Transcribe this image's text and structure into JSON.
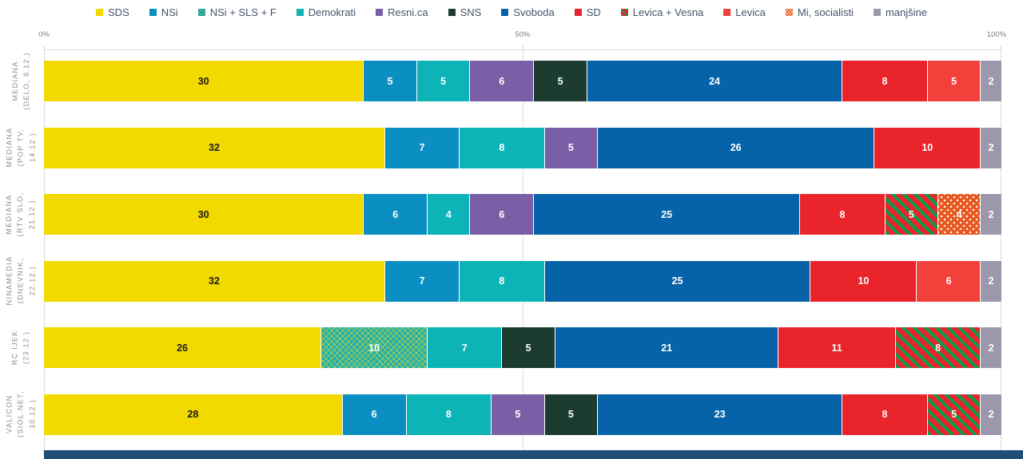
{
  "page": {
    "background": "#FFFFFF",
    "bottom_strip_color": "#1F4E79"
  },
  "chart_data": {
    "type": "bar",
    "variant": "horizontal-stacked-normalized",
    "title": "",
    "grid": "vertical gridlines at 0%, 50%, 100%",
    "legend_position": "top-center",
    "x_axis": {
      "ticks": [
        "0%",
        "50%",
        "100%"
      ],
      "range_percent": [
        0,
        100
      ]
    },
    "row_total": 90,
    "parties": [
      {
        "id": "sds",
        "label": "SDS",
        "color": "#F2D900",
        "pattern": "solid",
        "value_text_color": "#1b1b1b"
      },
      {
        "id": "nsi",
        "label": "NSi",
        "color": "#0B8FC3",
        "pattern": "solid"
      },
      {
        "id": "nsi_sls_f",
        "label": "NSi + SLS + F",
        "color": "#1CAFB4",
        "pattern": "zigzag",
        "pattern_color": "#BACE3B"
      },
      {
        "id": "demokrati",
        "label": "Demokrati",
        "color": "#0CB4B8",
        "pattern": "solid"
      },
      {
        "id": "resnica",
        "label": "Resni.ca",
        "color": "#7B5FA6",
        "pattern": "solid"
      },
      {
        "id": "sns",
        "label": "SNS",
        "color": "#1B3C2E",
        "pattern": "solid"
      },
      {
        "id": "svoboda",
        "label": "Svoboda",
        "color": "#0763A9",
        "pattern": "solid"
      },
      {
        "id": "sd",
        "label": "SD",
        "color": "#E9242B",
        "pattern": "solid"
      },
      {
        "id": "levica_vesna",
        "label": "Levica + Vesna",
        "color": "#E9242B",
        "pattern": "diagonal-stripes",
        "pattern_color": "#0E9B4F"
      },
      {
        "id": "levica",
        "label": "Levica",
        "color": "#F4403B",
        "pattern": "solid"
      },
      {
        "id": "mi_soc",
        "label": "Mi, socialisti",
        "color": "#E9571F",
        "pattern": "dots",
        "pattern_color": "#FFFFFF"
      },
      {
        "id": "manjsine",
        "label": "manjšine",
        "color": "#9D97AC",
        "pattern": "solid"
      }
    ],
    "rows": [
      {
        "label_lines": [
          "MEDIANA",
          "(DELO, 8.12.)"
        ],
        "segments": [
          [
            "sds",
            30
          ],
          [
            "nsi",
            5
          ],
          [
            "demokrati",
            5
          ],
          [
            "resnica",
            6
          ],
          [
            "sns",
            5
          ],
          [
            "svoboda",
            24
          ],
          [
            "sd",
            8
          ],
          [
            "levica",
            5
          ],
          [
            "manjsine",
            2
          ]
        ]
      },
      {
        "label_lines": [
          "MEDIANA",
          "(POP TV,",
          "14.12.)"
        ],
        "segments": [
          [
            "sds",
            32
          ],
          [
            "nsi",
            7
          ],
          [
            "demokrati",
            8
          ],
          [
            "resnica",
            5
          ],
          [
            "svoboda",
            26
          ],
          [
            "sd",
            10
          ],
          [
            "manjsine",
            2
          ]
        ]
      },
      {
        "label_lines": [
          "MEDIANA",
          "(RTV SLO,",
          "21.12.)"
        ],
        "segments": [
          [
            "sds",
            30
          ],
          [
            "nsi",
            6
          ],
          [
            "demokrati",
            4
          ],
          [
            "resnica",
            6
          ],
          [
            "svoboda",
            25
          ],
          [
            "sd",
            8
          ],
          [
            "levica_vesna",
            5
          ],
          [
            "mi_soc",
            4
          ],
          [
            "manjsine",
            2
          ]
        ]
      },
      {
        "label_lines": [
          "NINAMEDIA",
          "(DNEVNIK,",
          "22.12.)"
        ],
        "segments": [
          [
            "sds",
            32
          ],
          [
            "nsi",
            7
          ],
          [
            "demokrati",
            8
          ],
          [
            "svoboda",
            25
          ],
          [
            "sd",
            10
          ],
          [
            "levica",
            6
          ],
          [
            "manjsine",
            2
          ]
        ]
      },
      {
        "label_lines": [
          "RC IJEK",
          "(23.12.)"
        ],
        "segments": [
          [
            "sds",
            26
          ],
          [
            "nsi_sls_f",
            10
          ],
          [
            "demokrati",
            7
          ],
          [
            "sns",
            5
          ],
          [
            "svoboda",
            21
          ],
          [
            "sd",
            11
          ],
          [
            "levica_vesna",
            8
          ],
          [
            "manjsine",
            2
          ]
        ]
      },
      {
        "label_lines": [
          "VALICON",
          "(SIOL.NET,",
          "30.12.)"
        ],
        "segments": [
          [
            "sds",
            28
          ],
          [
            "nsi",
            6
          ],
          [
            "demokrati",
            8
          ],
          [
            "resnica",
            5
          ],
          [
            "sns",
            5
          ],
          [
            "svoboda",
            23
          ],
          [
            "sd",
            8
          ],
          [
            "levica_vesna",
            5
          ],
          [
            "manjsine",
            2
          ]
        ]
      }
    ]
  }
}
